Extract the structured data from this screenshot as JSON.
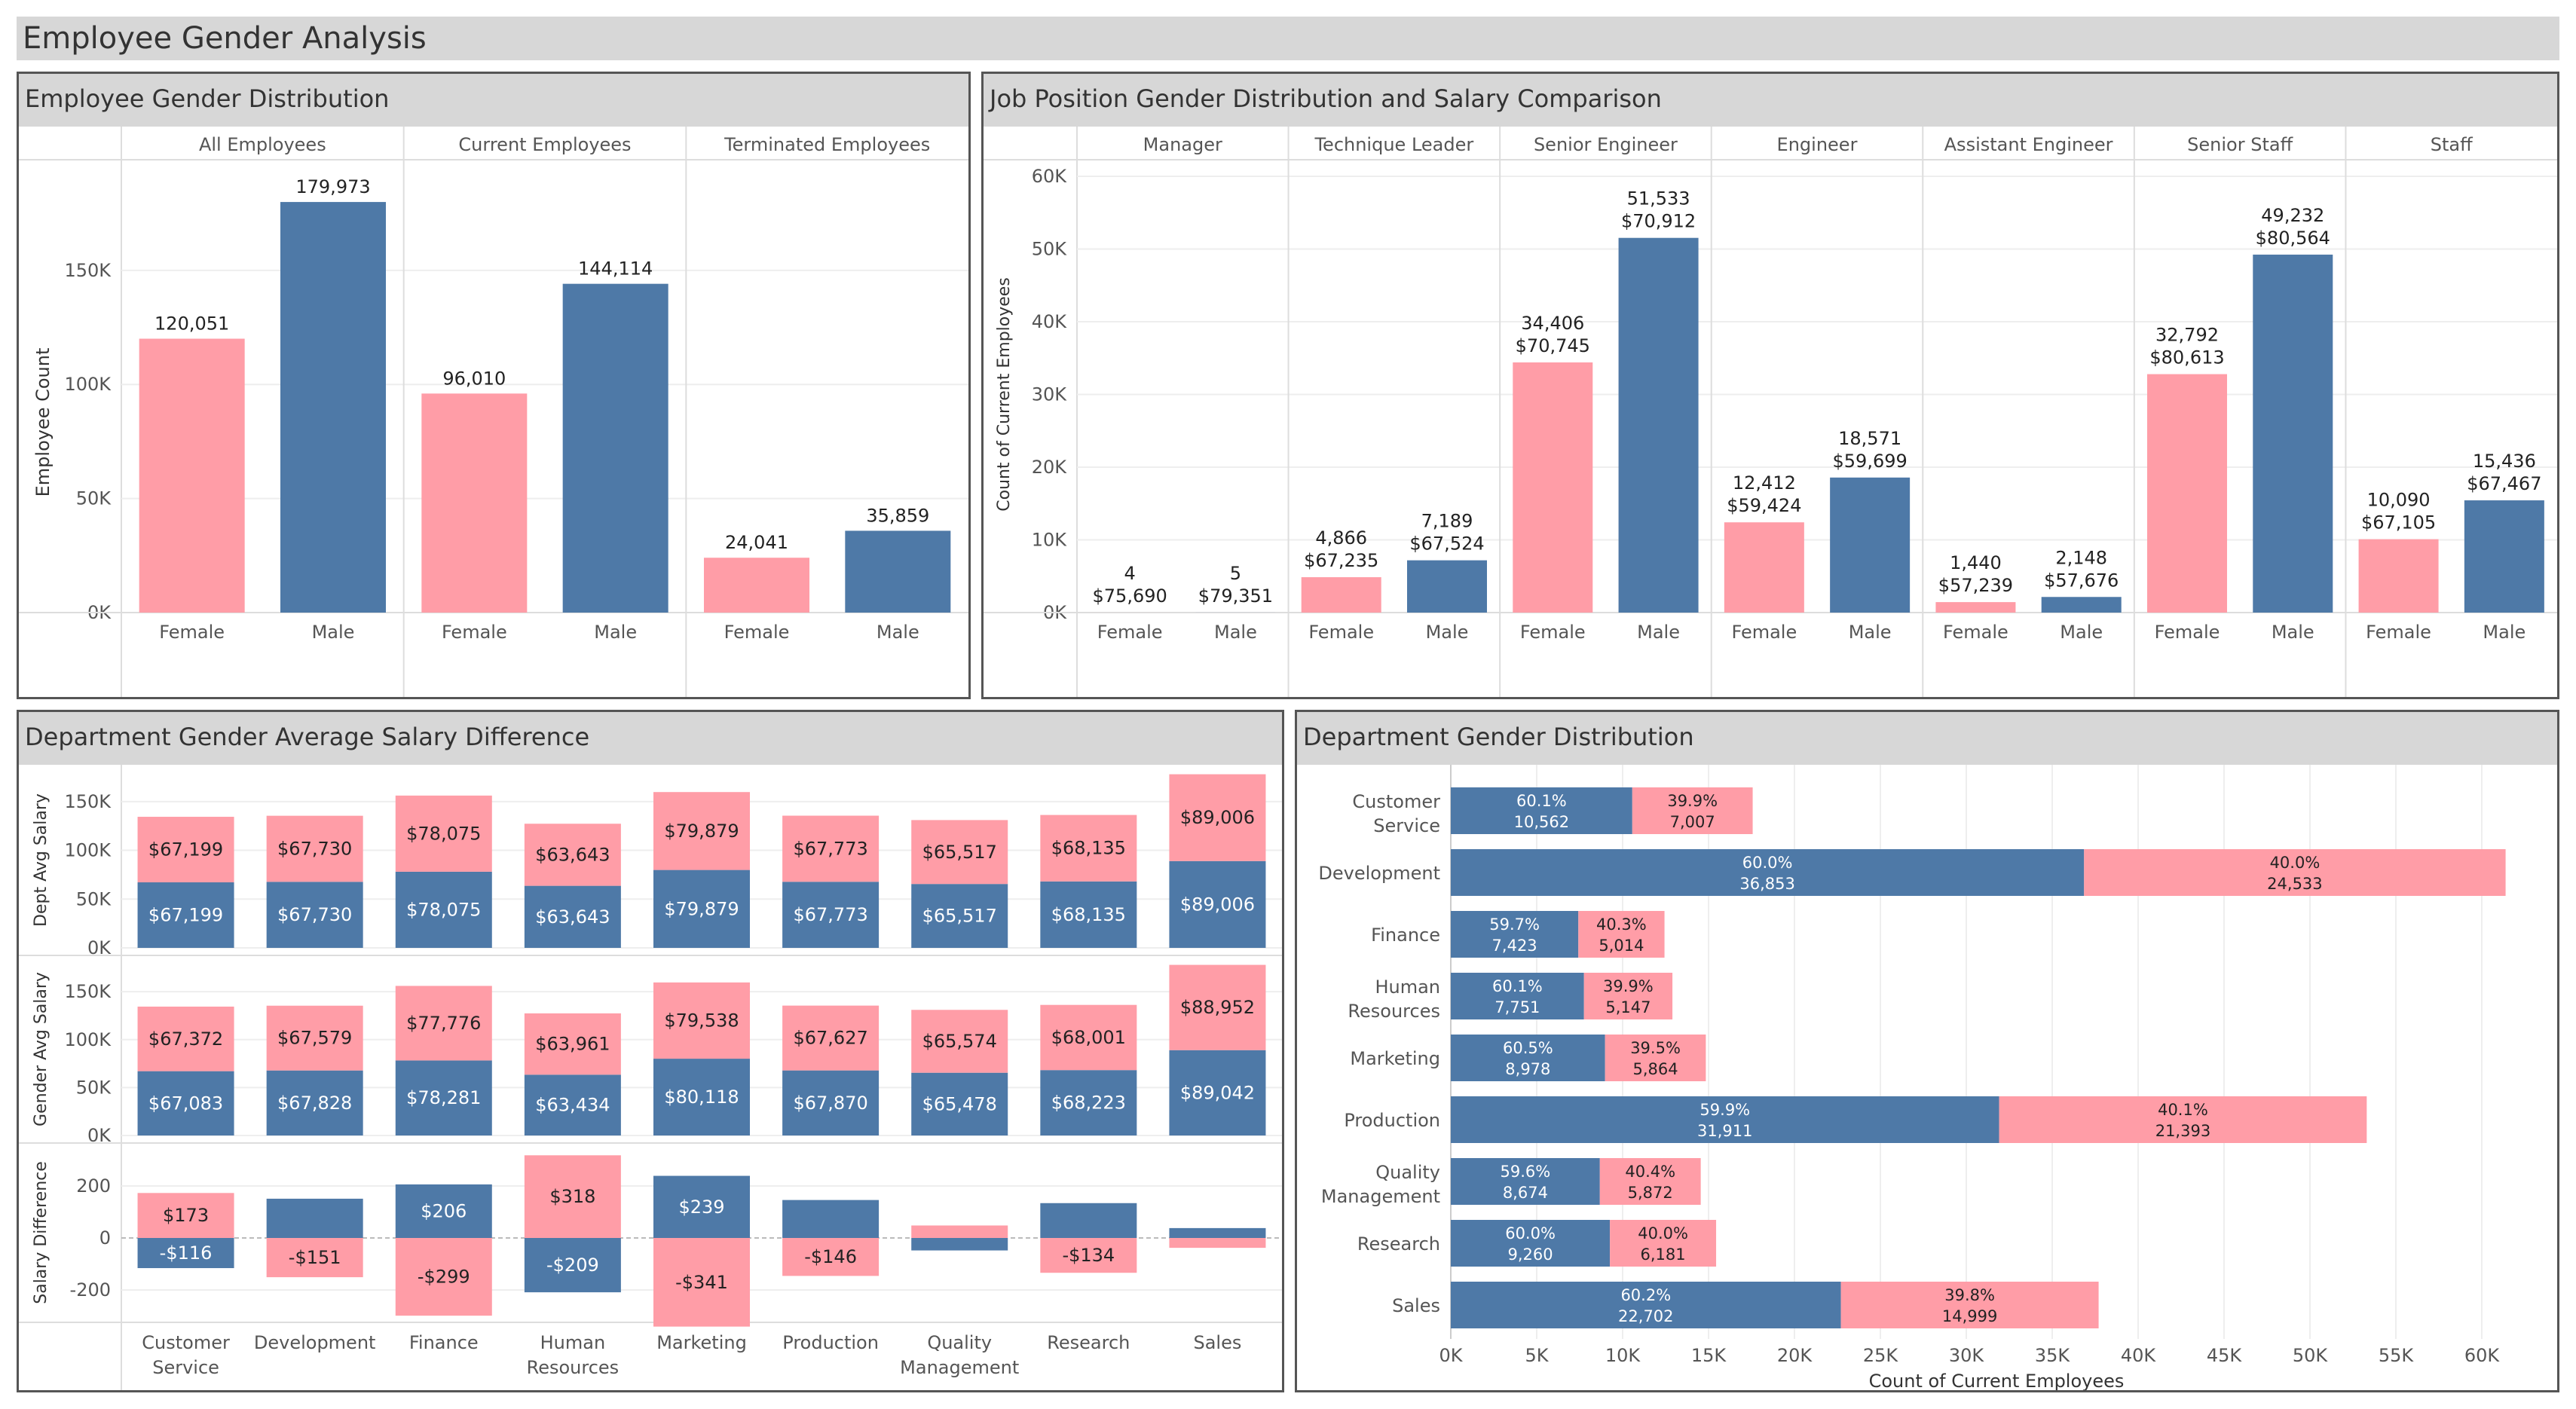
{
  "page_title": "Employee Gender Analysis",
  "colors": {
    "female": "#ff9da7",
    "male": "#4e79a7"
  },
  "chart_data": [
    {
      "type": "bar",
      "title": "Employee Gender Distribution",
      "ylabel": "Employee Count",
      "ylim": [
        0,
        180000
      ],
      "yticks": [
        "0K",
        "50K",
        "100K",
        "150K"
      ],
      "panels": [
        "All Employees",
        "Current Employees",
        "Terminated Employees"
      ],
      "categories": [
        "Female",
        "Male"
      ],
      "values": [
        [
          120051,
          179973
        ],
        [
          96010,
          144114
        ],
        [
          24041,
          35859
        ]
      ],
      "value_labels": [
        [
          "120,051",
          "179,973"
        ],
        [
          "96,010",
          "144,114"
        ],
        [
          "24,041",
          "35,859"
        ]
      ]
    },
    {
      "type": "bar",
      "title": "Job Position Gender Distribution and Salary Comparison",
      "ylabel": "Count of Current Employees",
      "ylim": [
        0,
        60000
      ],
      "yticks": [
        "0K",
        "10K",
        "20K",
        "30K",
        "40K",
        "50K",
        "60K"
      ],
      "panels": [
        "Manager",
        "Technique Leader",
        "Senior Engineer",
        "Engineer",
        "Assistant Engineer",
        "Senior Staff",
        "Staff"
      ],
      "categories": [
        "Female",
        "Male"
      ],
      "values": [
        [
          4,
          5
        ],
        [
          4866,
          7189
        ],
        [
          34406,
          51533
        ],
        [
          12412,
          18571
        ],
        [
          1440,
          2148
        ],
        [
          32792,
          49232
        ],
        [
          10090,
          15436
        ]
      ],
      "count_labels": [
        [
          "4",
          "5"
        ],
        [
          "4,866",
          "7,189"
        ],
        [
          "34,406",
          "51,533"
        ],
        [
          "12,412",
          "18,571"
        ],
        [
          "1,440",
          "2,148"
        ],
        [
          "32,792",
          "49,232"
        ],
        [
          "10,090",
          "15,436"
        ]
      ],
      "salary_labels": [
        [
          "$75,690",
          "$79,351"
        ],
        [
          "$67,235",
          "$67,524"
        ],
        [
          "$70,745",
          "$70,912"
        ],
        [
          "$59,424",
          "$59,699"
        ],
        [
          "$57,239",
          "$57,676"
        ],
        [
          "$80,613",
          "$80,564"
        ],
        [
          "$67,105",
          "$67,467"
        ]
      ]
    },
    {
      "type": "bar",
      "title": "Department Gender Average Salary Difference",
      "categories": [
        "Customer Service",
        "Development",
        "Finance",
        "Human Resources",
        "Marketing",
        "Production",
        "Quality Management",
        "Research",
        "Sales"
      ],
      "rows": [
        {
          "ylabel": "Dept Avg Salary",
          "ylim": [
            0,
            180000
          ],
          "yticks": [
            "0K",
            "50K",
            "100K",
            "150K"
          ],
          "male": [
            67199,
            67730,
            78075,
            63643,
            79879,
            67773,
            65517,
            68135,
            89006
          ],
          "female": [
            67199,
            67730,
            78075,
            63643,
            79879,
            67773,
            65517,
            68135,
            89006
          ],
          "male_labels": [
            "$67,199",
            "$67,730",
            "$78,075",
            "$63,643",
            "$79,879",
            "$67,773",
            "$65,517",
            "$68,135",
            "$89,006"
          ],
          "female_labels": [
            "$67,199",
            "$67,730",
            "$78,075",
            "$63,643",
            "$79,879",
            "$67,773",
            "$65,517",
            "$68,135",
            "$89,006"
          ]
        },
        {
          "ylabel": "Gender Avg Salary",
          "ylim": [
            0,
            180000
          ],
          "yticks": [
            "0K",
            "50K",
            "100K",
            "150K"
          ],
          "male": [
            67083,
            67828,
            78281,
            63434,
            80118,
            67870,
            65478,
            68223,
            89042
          ],
          "female": [
            67372,
            67579,
            77776,
            63961,
            79538,
            67627,
            65574,
            68001,
            88952
          ],
          "male_labels": [
            "$67,083",
            "$67,828",
            "$78,281",
            "$63,434",
            "$80,118",
            "$67,870",
            "$65,478",
            "$68,223",
            "$89,042"
          ],
          "female_labels": [
            "$67,372",
            "$67,579",
            "$77,776",
            "$63,961",
            "$79,538",
            "$67,627",
            "$65,574",
            "$68,001",
            "$88,952"
          ]
        },
        {
          "ylabel": "Salary Difference",
          "ylim": [
            -350,
            250
          ],
          "yticks": [
            "-200",
            "0",
            "200"
          ],
          "male": [
            -116,
            151,
            206,
            -209,
            239,
            146,
            -48,
            134,
            38
          ],
          "female": [
            173,
            -151,
            -299,
            318,
            -341,
            -146,
            48,
            -134,
            -38
          ],
          "male_labels": [
            "-$116",
            "",
            "$206",
            "-$209",
            "$239",
            "",
            "",
            "",
            ""
          ],
          "female_labels": [
            "$173",
            "-$151",
            "-$299",
            "$318",
            "-$341",
            "-$146",
            "",
            "-$134",
            ""
          ]
        }
      ]
    },
    {
      "type": "bar",
      "orientation": "horizontal",
      "stacked": true,
      "title": "Department Gender Distribution",
      "xlabel": "Count of Current Employees",
      "xlim": [
        0,
        63000
      ],
      "xticks": [
        "0K",
        "5K",
        "10K",
        "15K",
        "20K",
        "25K",
        "30K",
        "35K",
        "40K",
        "45K",
        "50K",
        "55K",
        "60K"
      ],
      "categories": [
        "Customer Service",
        "Development",
        "Finance",
        "Human Resources",
        "Marketing",
        "Production",
        "Quality Management",
        "Research",
        "Sales"
      ],
      "series": [
        {
          "name": "Male",
          "values": [
            10562,
            36853,
            7423,
            7751,
            8978,
            31911,
            8674,
            9260,
            22702
          ],
          "pct": [
            "60.1%",
            "60.0%",
            "59.7%",
            "60.1%",
            "60.5%",
            "59.9%",
            "59.6%",
            "60.0%",
            "60.2%"
          ],
          "labels": [
            "10,562",
            "36,853",
            "7,423",
            "7,751",
            "8,978",
            "31,911",
            "8,674",
            "9,260",
            "22,702"
          ]
        },
        {
          "name": "Female",
          "values": [
            7007,
            24533,
            5014,
            5147,
            5864,
            21393,
            5872,
            6181,
            14999
          ],
          "pct": [
            "39.9%",
            "40.0%",
            "40.3%",
            "39.9%",
            "39.5%",
            "40.1%",
            "40.4%",
            "40.0%",
            "39.8%"
          ],
          "labels": [
            "7,007",
            "24,533",
            "5,014",
            "5,147",
            "5,864",
            "21,393",
            "5,872",
            "6,181",
            "14,999"
          ]
        }
      ]
    }
  ]
}
